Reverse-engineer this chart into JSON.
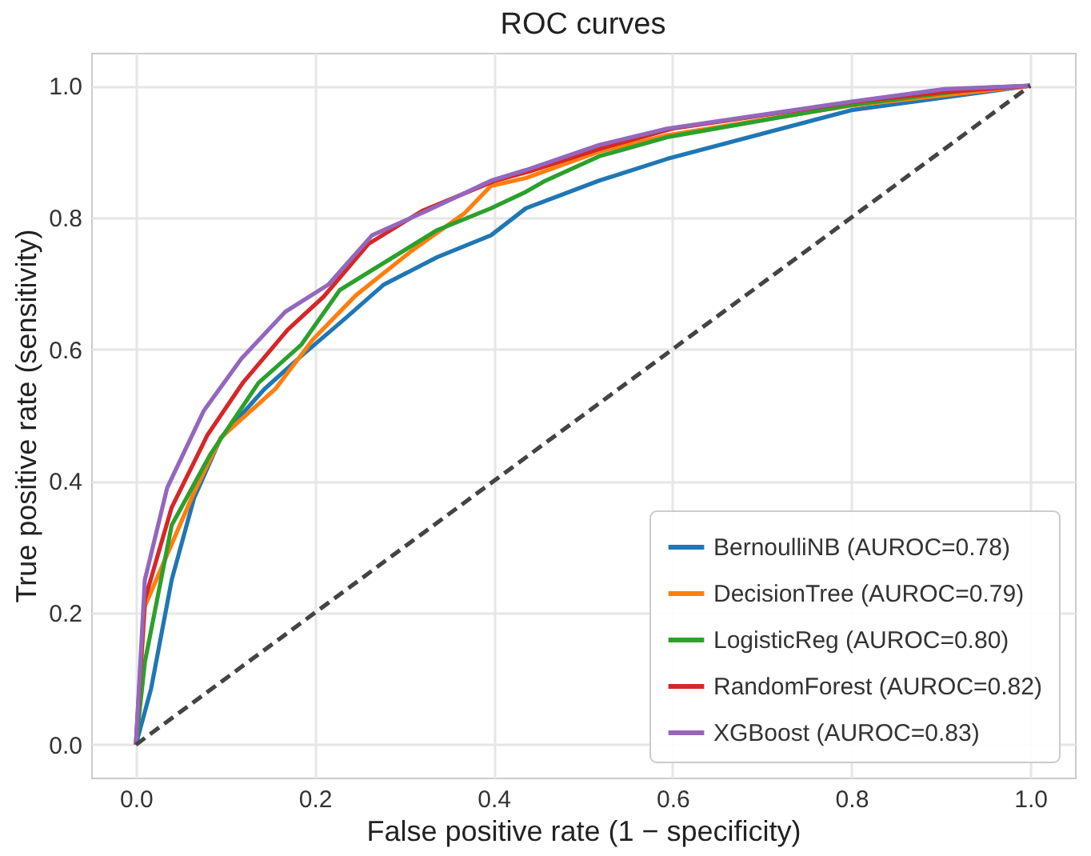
{
  "chart_data": {
    "type": "line",
    "title": "ROC curves",
    "xlabel": "False positive rate (1 − specificity)",
    "ylabel": "True positive rate (sensitivity)",
    "xlim": [
      -0.05,
      1.05
    ],
    "ylim": [
      -0.05,
      1.05
    ],
    "xticks": [
      {
        "value": 0,
        "label": "0.0"
      },
      {
        "value": 0.2,
        "label": "0.2"
      },
      {
        "value": 0.4,
        "label": "0.4"
      },
      {
        "value": 0.6,
        "label": "0.6"
      },
      {
        "value": 0.8,
        "label": "0.8"
      },
      {
        "value": 1,
        "label": "1.0"
      }
    ],
    "yticks": [
      {
        "value": 0,
        "label": "0.0"
      },
      {
        "value": 0.2,
        "label": "0.2"
      },
      {
        "value": 0.4,
        "label": "0.4"
      },
      {
        "value": 0.6,
        "label": "0.6"
      },
      {
        "value": 0.8,
        "label": "0.8"
      },
      {
        "value": 1,
        "label": "1.0"
      }
    ],
    "grid": true,
    "legend": "bottom right",
    "marker": "none",
    "series": [
      {
        "name": "BernoulliNB (AUROC=0.78)",
        "color": "#1f77b4",
        "x": [
          0,
          0.017,
          0.04,
          0.065,
          0.095,
          0.144,
          0.185,
          0.235,
          0.277,
          0.337,
          0.397,
          0.436,
          0.518,
          0.594,
          0.8,
          1
        ],
        "values": [
          0,
          0.085,
          0.25,
          0.374,
          0.466,
          0.54,
          0.59,
          0.648,
          0.698,
          0.74,
          0.773,
          0.814,
          0.856,
          0.889,
          0.963,
          1
        ]
      },
      {
        "name": "DecisionTree (AUROC=0.79)",
        "color": "#ff7f0e",
        "x": [
          0,
          0.01,
          0.065,
          0.095,
          0.156,
          0.198,
          0.246,
          0.307,
          0.367,
          0.397,
          0.436,
          0.518,
          0.594,
          0.8,
          1
        ],
        "values": [
          0,
          0.21,
          0.383,
          0.466,
          0.54,
          0.615,
          0.682,
          0.748,
          0.806,
          0.848,
          0.86,
          0.9,
          0.925,
          0.97,
          1
        ]
      },
      {
        "name": "LogisticReg (AUROC=0.80)",
        "color": "#2ca02c",
        "x": [
          0,
          0.01,
          0.04,
          0.083,
          0.137,
          0.185,
          0.228,
          0.277,
          0.337,
          0.397,
          0.436,
          0.458,
          0.518,
          0.594,
          0.8,
          0.95,
          1
        ],
        "values": [
          0,
          0.125,
          0.333,
          0.44,
          0.549,
          0.607,
          0.69,
          0.731,
          0.781,
          0.814,
          0.839,
          0.856,
          0.893,
          0.922,
          0.971,
          0.997,
          1
        ]
      },
      {
        "name": "RandomForest (AUROC=0.82)",
        "color": "#d62728",
        "x": [
          0,
          0.01,
          0.04,
          0.08,
          0.12,
          0.17,
          0.21,
          0.26,
          0.32,
          0.4,
          0.44,
          0.52,
          0.6,
          0.8,
          0.9,
          1
        ],
        "values": [
          0,
          0.22,
          0.36,
          0.47,
          0.55,
          0.63,
          0.68,
          0.76,
          0.81,
          0.855,
          0.87,
          0.905,
          0.935,
          0.975,
          0.99,
          1
        ]
      },
      {
        "name": "XGBoost (AUROC=0.83)",
        "color": "#9467bd",
        "x": [
          0,
          0.01,
          0.035,
          0.076,
          0.118,
          0.167,
          0.215,
          0.264,
          0.325,
          0.397,
          0.436,
          0.518,
          0.594,
          0.8,
          0.904,
          1
        ],
        "values": [
          0,
          0.25,
          0.39,
          0.507,
          0.586,
          0.657,
          0.698,
          0.773,
          0.81,
          0.856,
          0.872,
          0.91,
          0.935,
          0.976,
          0.995,
          1
        ]
      },
      {
        "color": "#444444",
        "line_style": "dashed",
        "x": [
          0,
          1
        ],
        "values": [
          0,
          1
        ]
      }
    ]
  }
}
